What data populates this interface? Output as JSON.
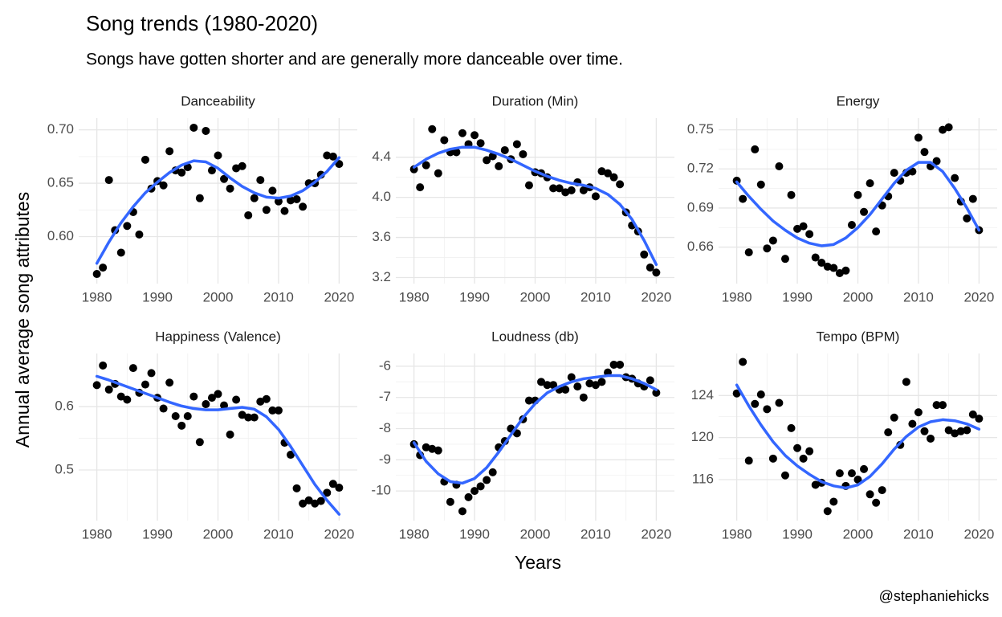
{
  "title": "Song trends (1980-2020)",
  "subtitle": "Songs have gotten shorter and are generally more danceable over time.",
  "x_label": "Years",
  "y_label": "Annual average song attributes",
  "caption": "@stephaniehicks",
  "chart_data": [
    {
      "type": "scatter",
      "title": "Danceability",
      "xlim": [
        1977,
        2023
      ],
      "xticks": [
        1980,
        1990,
        2000,
        2010,
        2020
      ],
      "ylim": [
        0.556,
        0.711
      ],
      "yticks": [
        {
          "value": 0.6,
          "label": "0.60"
        },
        0.65,
        {
          "value": 0.7,
          "label": "0.70"
        }
      ],
      "grid": true,
      "series": [
        {
          "type": "scatter",
          "color": "#000000",
          "x": [
            1980,
            1981,
            1982,
            1983,
            1984,
            1985,
            1986,
            1987,
            1988,
            1989,
            1990,
            1991,
            1992,
            1993,
            1994,
            1995,
            1996,
            1997,
            1998,
            1999,
            2000,
            2001,
            2002,
            2003,
            2004,
            2005,
            2006,
            2007,
            2008,
            2009,
            2010,
            2011,
            2012,
            2013,
            2014,
            2015,
            2016,
            2017,
            2018,
            2019,
            2020
          ],
          "values": [
            0.565,
            0.571,
            0.653,
            0.606,
            0.585,
            0.61,
            0.623,
            0.602,
            0.672,
            0.645,
            0.652,
            0.648,
            0.68,
            0.662,
            0.66,
            0.665,
            0.702,
            0.636,
            0.699,
            0.662,
            0.676,
            0.654,
            0.645,
            0.664,
            0.666,
            0.62,
            0.636,
            0.653,
            0.625,
            0.643,
            0.633,
            0.624,
            0.634,
            0.635,
            0.628,
            0.65,
            0.65,
            0.658,
            0.676,
            0.675,
            0.668
          ]
        },
        {
          "type": "line",
          "color": "#3366ff",
          "x": [
            1980,
            1982,
            1984,
            1986,
            1988,
            1990,
            1992,
            1994,
            1996,
            1998,
            2000,
            2002,
            2004,
            2006,
            2008,
            2010,
            2012,
            2014,
            2016,
            2018,
            2020
          ],
          "values": [
            0.575,
            0.595,
            0.613,
            0.628,
            0.641,
            0.651,
            0.66,
            0.667,
            0.671,
            0.67,
            0.664,
            0.655,
            0.647,
            0.641,
            0.637,
            0.636,
            0.638,
            0.643,
            0.651,
            0.661,
            0.674
          ]
        }
      ]
    },
    {
      "type": "scatter",
      "title": "Duration (Min)",
      "xlim": [
        1977,
        2023
      ],
      "xticks": [
        1980,
        1990,
        2000,
        2010,
        2020
      ],
      "ylim": [
        3.14,
        4.79
      ],
      "yticks": [
        3.2,
        3.6,
        {
          "value": 4,
          "label": "4.0"
        },
        4.4
      ],
      "grid": true,
      "series": [
        {
          "type": "scatter",
          "color": "#000000",
          "x": [
            1980,
            1981,
            1982,
            1983,
            1984,
            1985,
            1986,
            1987,
            1988,
            1989,
            1990,
            1991,
            1992,
            1993,
            1994,
            1995,
            1996,
            1997,
            1998,
            1999,
            2000,
            2001,
            2002,
            2003,
            2004,
            2005,
            2006,
            2007,
            2008,
            2009,
            2010,
            2011,
            2012,
            2013,
            2014,
            2015,
            2016,
            2017,
            2018,
            2019,
            2020
          ],
          "values": [
            4.28,
            4.1,
            4.32,
            4.68,
            4.24,
            4.57,
            4.45,
            4.45,
            4.64,
            4.53,
            4.62,
            4.54,
            4.37,
            4.41,
            4.31,
            4.47,
            4.38,
            4.53,
            4.43,
            4.12,
            4.25,
            4.24,
            4.2,
            4.09,
            4.09,
            4.05,
            4.07,
            4.15,
            4.07,
            4.1,
            4.01,
            4.26,
            4.24,
            4.2,
            4.13,
            3.85,
            3.72,
            3.66,
            3.43,
            3.3,
            3.25
          ]
        },
        {
          "type": "line",
          "color": "#3366ff",
          "x": [
            1980,
            1982,
            1984,
            1986,
            1988,
            1990,
            1992,
            1994,
            1996,
            1998,
            2000,
            2002,
            2004,
            2006,
            2008,
            2010,
            2012,
            2014,
            2016,
            2018,
            2020
          ],
          "values": [
            4.3,
            4.38,
            4.44,
            4.48,
            4.5,
            4.5,
            4.47,
            4.43,
            4.38,
            4.32,
            4.26,
            4.21,
            4.17,
            4.14,
            4.12,
            4.09,
            4.03,
            3.93,
            3.78,
            3.57,
            3.33
          ]
        }
      ]
    },
    {
      "type": "scatter",
      "title": "Energy",
      "xlim": [
        1977,
        2023
      ],
      "xticks": [
        1980,
        1990,
        2000,
        2010,
        2020
      ],
      "ylim": [
        0.632,
        0.759
      ],
      "yticks": [
        0.66,
        0.69,
        0.72,
        0.75
      ],
      "grid": true,
      "series": [
        {
          "type": "scatter",
          "color": "#000000",
          "x": [
            1980,
            1981,
            1982,
            1983,
            1984,
            1985,
            1986,
            1987,
            1988,
            1989,
            1990,
            1991,
            1992,
            1993,
            1994,
            1995,
            1996,
            1997,
            1998,
            1999,
            2000,
            2001,
            2002,
            2003,
            2004,
            2005,
            2006,
            2007,
            2008,
            2009,
            2010,
            2011,
            2012,
            2013,
            2014,
            2015,
            2016,
            2017,
            2018,
            2019,
            2020
          ],
          "values": [
            0.711,
            0.697,
            0.656,
            0.735,
            0.708,
            0.659,
            0.665,
            0.722,
            0.651,
            0.7,
            0.674,
            0.676,
            0.67,
            0.652,
            0.648,
            0.645,
            0.644,
            0.64,
            0.642,
            0.677,
            0.7,
            0.687,
            0.709,
            0.672,
            0.692,
            0.699,
            0.717,
            0.711,
            0.717,
            0.718,
            0.744,
            0.733,
            0.722,
            0.726,
            0.75,
            0.752,
            0.713,
            0.695,
            0.682,
            0.697,
            0.673
          ]
        },
        {
          "type": "line",
          "color": "#3366ff",
          "x": [
            1980,
            1982,
            1984,
            1986,
            1988,
            1990,
            1992,
            1994,
            1996,
            1998,
            2000,
            2002,
            2004,
            2006,
            2008,
            2010,
            2012,
            2014,
            2016,
            2018,
            2020
          ],
          "values": [
            0.71,
            0.699,
            0.689,
            0.68,
            0.673,
            0.667,
            0.663,
            0.661,
            0.662,
            0.667,
            0.675,
            0.685,
            0.697,
            0.709,
            0.719,
            0.725,
            0.725,
            0.718,
            0.705,
            0.69,
            0.673
          ]
        }
      ]
    },
    {
      "type": "scatter",
      "title": "Happiness (Valence)",
      "xlim": [
        1977,
        2023
      ],
      "xticks": [
        1980,
        1990,
        2000,
        2010,
        2020
      ],
      "ylim": [
        0.42,
        0.684
      ],
      "yticks": [
        0.5,
        0.6
      ],
      "grid": true,
      "series": [
        {
          "type": "scatter",
          "color": "#000000",
          "x": [
            1980,
            1981,
            1982,
            1983,
            1984,
            1985,
            1986,
            1987,
            1988,
            1989,
            1990,
            1991,
            1992,
            1993,
            1994,
            1995,
            1996,
            1997,
            1998,
            1999,
            2000,
            2001,
            2002,
            2003,
            2004,
            2005,
            2006,
            2007,
            2008,
            2009,
            2010,
            2011,
            2012,
            2013,
            2014,
            2015,
            2016,
            2017,
            2018,
            2019,
            2020
          ],
          "values": [
            0.634,
            0.665,
            0.627,
            0.636,
            0.616,
            0.611,
            0.661,
            0.622,
            0.635,
            0.653,
            0.614,
            0.597,
            0.638,
            0.585,
            0.57,
            0.585,
            0.616,
            0.544,
            0.604,
            0.614,
            0.62,
            0.602,
            0.556,
            0.611,
            0.587,
            0.583,
            0.583,
            0.608,
            0.612,
            0.594,
            0.594,
            0.543,
            0.524,
            0.471,
            0.447,
            0.452,
            0.447,
            0.451,
            0.464,
            0.478,
            0.472
          ]
        },
        {
          "type": "line",
          "color": "#3366ff",
          "x": [
            1980,
            1982,
            1984,
            1986,
            1988,
            1990,
            1992,
            1994,
            1996,
            1998,
            2000,
            2002,
            2004,
            2006,
            2008,
            2010,
            2012,
            2014,
            2016,
            2018,
            2020
          ],
          "values": [
            0.648,
            0.642,
            0.635,
            0.628,
            0.621,
            0.614,
            0.607,
            0.601,
            0.597,
            0.595,
            0.595,
            0.597,
            0.599,
            0.596,
            0.584,
            0.564,
            0.537,
            0.507,
            0.477,
            0.452,
            0.43
          ]
        }
      ]
    },
    {
      "type": "scatter",
      "title": "Loudness (db)",
      "xlim": [
        1977,
        2023
      ],
      "xticks": [
        1980,
        1990,
        2000,
        2010,
        2020
      ],
      "ylim": [
        -10.95,
        -5.59
      ],
      "yticks": [
        -10,
        -9,
        -8,
        -7,
        -6
      ],
      "grid": true,
      "series": [
        {
          "type": "scatter",
          "color": "#000000",
          "x": [
            1980,
            1981,
            1982,
            1983,
            1984,
            1985,
            1986,
            1987,
            1988,
            1989,
            1990,
            1991,
            1992,
            1993,
            1994,
            1995,
            1996,
            1997,
            1998,
            1999,
            2000,
            2001,
            2002,
            2003,
            2004,
            2005,
            2006,
            2007,
            2008,
            2009,
            2010,
            2011,
            2012,
            2013,
            2014,
            2015,
            2016,
            2017,
            2018,
            2019,
            2020
          ],
          "values": [
            -8.5,
            -8.85,
            -8.6,
            -8.65,
            -8.7,
            -9.7,
            -10.35,
            -9.8,
            -10.65,
            -10.2,
            -10.0,
            -9.85,
            -9.65,
            -9.4,
            -8.6,
            -8.4,
            -8.0,
            -8.15,
            -7.7,
            -7.1,
            -7.1,
            -6.5,
            -6.6,
            -6.6,
            -6.75,
            -6.75,
            -6.35,
            -6.65,
            -7.0,
            -6.55,
            -6.6,
            -6.5,
            -6.2,
            -5.95,
            -5.95,
            -6.35,
            -6.4,
            -6.55,
            -6.65,
            -6.45,
            -6.85
          ]
        },
        {
          "type": "line",
          "color": "#3366ff",
          "x": [
            1980,
            1982,
            1984,
            1986,
            1988,
            1990,
            1992,
            1994,
            1996,
            1998,
            2000,
            2002,
            2004,
            2006,
            2008,
            2010,
            2012,
            2014,
            2016,
            2018,
            2020
          ],
          "values": [
            -8.45,
            -9.05,
            -9.45,
            -9.7,
            -9.75,
            -9.6,
            -9.25,
            -8.75,
            -8.2,
            -7.65,
            -7.2,
            -6.85,
            -6.65,
            -6.5,
            -6.4,
            -6.35,
            -6.3,
            -6.3,
            -6.4,
            -6.55,
            -6.75
          ]
        }
      ]
    },
    {
      "type": "scatter",
      "title": "Tempo (BPM)",
      "xlim": [
        1977,
        2023
      ],
      "xticks": [
        1980,
        1990,
        2000,
        2010,
        2020
      ],
      "ylim": [
        112.1,
        128
      ],
      "yticks": [
        116,
        120,
        124
      ],
      "grid": true,
      "series": [
        {
          "type": "scatter",
          "color": "#000000",
          "x": [
            1980,
            1981,
            1982,
            1983,
            1984,
            1985,
            1986,
            1987,
            1988,
            1989,
            1990,
            1991,
            1992,
            1993,
            1994,
            1995,
            1996,
            1997,
            1998,
            1999,
            2000,
            2001,
            2002,
            2003,
            2004,
            2005,
            2006,
            2007,
            2008,
            2009,
            2010,
            2011,
            2012,
            2013,
            2014,
            2015,
            2016,
            2017,
            2018,
            2019,
            2020
          ],
          "values": [
            124.2,
            127.2,
            117.8,
            123.2,
            124.1,
            122.7,
            118.0,
            123.3,
            116.4,
            120.9,
            119.0,
            118.0,
            118.7,
            115.5,
            115.7,
            113.0,
            113.9,
            116.6,
            115.4,
            116.6,
            116.0,
            117.0,
            114.6,
            113.8,
            115.0,
            120.5,
            121.9,
            119.3,
            125.3,
            121.3,
            122.4,
            120.6,
            119.9,
            123.1,
            123.1,
            120.7,
            120.4,
            120.6,
            120.7,
            122.2,
            121.8
          ]
        },
        {
          "type": "line",
          "color": "#3366ff",
          "x": [
            1980,
            1982,
            1984,
            1986,
            1988,
            1990,
            1992,
            1994,
            1996,
            1998,
            2000,
            2002,
            2004,
            2006,
            2008,
            2010,
            2012,
            2014,
            2016,
            2018,
            2020
          ],
          "values": [
            125.0,
            123.0,
            121.2,
            119.6,
            118.3,
            117.3,
            116.5,
            115.8,
            115.4,
            115.2,
            115.5,
            116.3,
            117.5,
            118.9,
            120.1,
            121.0,
            121.5,
            121.7,
            121.6,
            121.3,
            120.8
          ]
        }
      ]
    }
  ]
}
